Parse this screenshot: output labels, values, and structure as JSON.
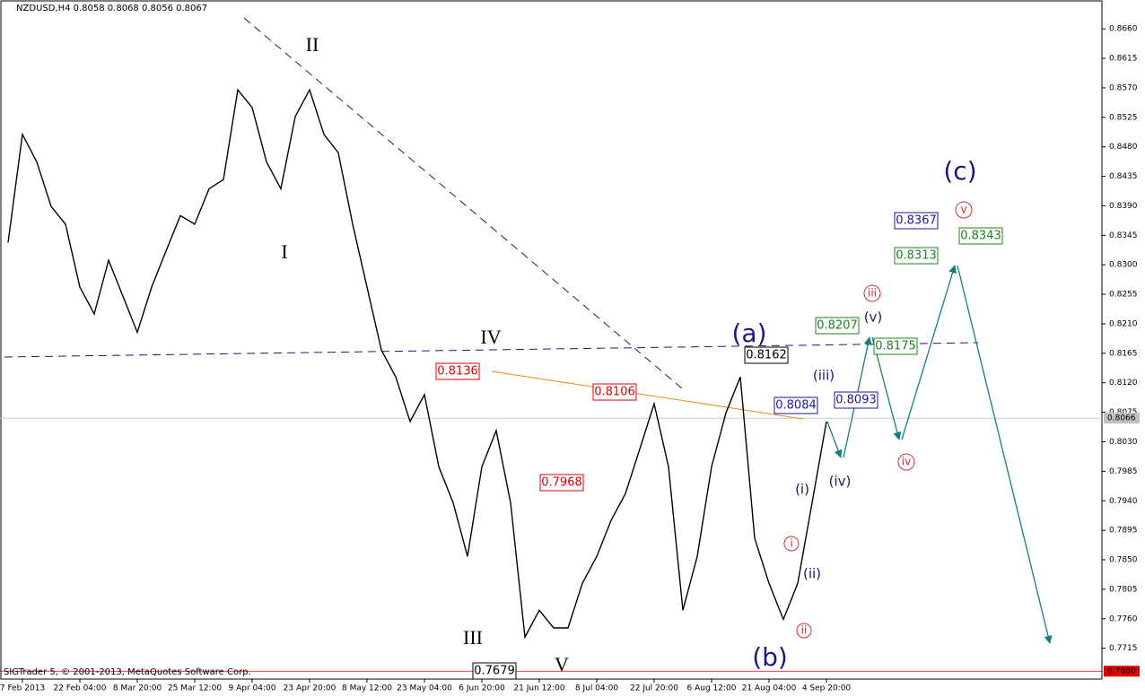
{
  "chart_data": {
    "type": "line",
    "title": "NZDUSD,H4  0.8058 0.8068 0.8056 0.8067",
    "copyright": "SIGTrader 5, © 2001-2013, MetaQuotes Software Corp.",
    "categories": [
      null,
      "7 Feb 2013",
      null,
      null,
      null,
      "22 Feb 04:00",
      null,
      null,
      null,
      "8 Mar 20:00",
      null,
      null,
      null,
      "25 Mar 12:00",
      null,
      null,
      null,
      "9 Apr 04:00",
      null,
      null,
      null,
      "23 Apr 20:00",
      null,
      null,
      null,
      "8 May 12:00",
      null,
      null,
      null,
      "23 May 04:00",
      null,
      null,
      null,
      "6 Jun 20:00",
      null,
      null,
      null,
      "21 Jun 12:00",
      null,
      null,
      null,
      "8 Jul 04:00",
      null,
      null,
      null,
      "22 Jul 20:00",
      null,
      null,
      null,
      "6 Aug 12:00",
      null,
      null,
      null,
      "21 Aug 04:00",
      null,
      null,
      null,
      "4 Sep 20:00"
    ],
    "values": [
      0.8334,
      0.8499,
      0.8457,
      0.8389,
      0.8362,
      0.8266,
      0.8225,
      0.8307,
      0.8252,
      0.8197,
      0.8266,
      0.8321,
      0.8375,
      0.8362,
      0.8416,
      0.843,
      0.8567,
      0.854,
      0.8457,
      0.8416,
      0.8526,
      0.8567,
      0.8499,
      0.8471,
      0.8362,
      0.8266,
      0.817,
      0.8129,
      0.8061,
      0.8102,
      0.7992,
      0.7937,
      0.7855,
      0.7992,
      0.8047,
      0.7937,
      0.7732,
      0.7773,
      0.7746,
      0.7746,
      0.7814,
      0.7855,
      0.791,
      0.7951,
      0.8019,
      0.8088,
      0.7992,
      0.7773,
      0.7855,
      0.7992,
      0.8074,
      0.8129,
      0.7883,
      0.7814,
      0.7759,
      0.7814,
      0.7937,
      0.8061
    ],
    "color": "#000000",
    "ylim": [
      0.7668,
      0.8704
    ],
    "yticks": [
      {
        "value": 0.866,
        "label": "0.8660"
      },
      {
        "value": 0.8615,
        "label": "0.8615"
      },
      {
        "value": 0.857,
        "label": "0.8570"
      },
      {
        "value": 0.8525,
        "label": "0.8525"
      },
      {
        "value": 0.848,
        "label": "0.8480"
      },
      {
        "value": 0.8435,
        "label": "0.8435"
      },
      {
        "value": 0.839,
        "label": "0.8390"
      },
      {
        "value": 0.8345,
        "label": "0.8345"
      },
      {
        "value": 0.83,
        "label": "0.8300"
      },
      {
        "value": 0.8255,
        "label": "0.8255"
      },
      {
        "value": 0.821,
        "label": "0.8210"
      },
      {
        "value": 0.8165,
        "label": "0.8165"
      },
      {
        "value": 0.812,
        "label": "0.8120"
      },
      {
        "value": 0.8075,
        "label": "0.8075"
      },
      {
        "value": 0.803,
        "label": "0.8030"
      },
      {
        "value": 0.7985,
        "label": "0.7985"
      },
      {
        "value": 0.794,
        "label": "0.7940"
      },
      {
        "value": 0.7895,
        "label": "0.7895"
      },
      {
        "value": 0.785,
        "label": "0.7850"
      },
      {
        "value": 0.7805,
        "label": "0.7805"
      },
      {
        "value": 0.776,
        "label": "0.7760"
      },
      {
        "value": 0.7715,
        "label": "0.7715"
      }
    ],
    "price_markers": [
      {
        "value": 0.8066,
        "label": "0.8066",
        "color": "#c0c0c0"
      },
      {
        "value": 0.768,
        "label": "0.7680",
        "color": "#e00000"
      }
    ],
    "wave_labels": [
      "II",
      "I",
      "IV",
      "III",
      "V",
      "(a)",
      "(b)",
      "(c)",
      "(iii)",
      "(v)",
      "(i)",
      "(iv)",
      "(ii)",
      "i",
      "ii",
      "iii",
      "iv",
      "v"
    ],
    "price_boxes": [
      "0.8136",
      "0.8106",
      "0.7968",
      "0.8162",
      "0.7679",
      "0.8367",
      "0.8084",
      "0.8093",
      "0.8313",
      "0.8343",
      "0.8207",
      "0.8175"
    ]
  }
}
